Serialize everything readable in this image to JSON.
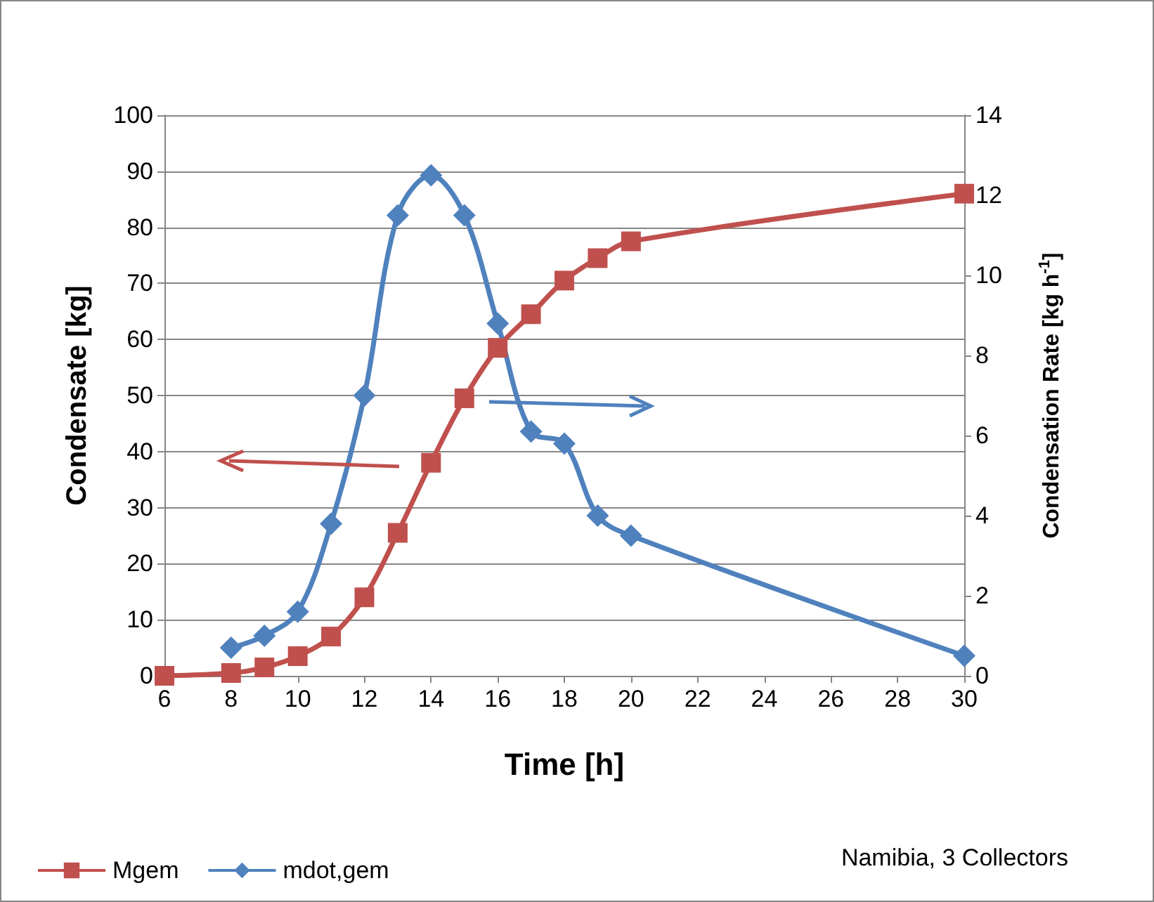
{
  "chart_data": {
    "type": "line",
    "xlabel": "Time [h]",
    "ylabel": "Condensate [kg]",
    "y2label": "Condensation Rate [kg h$^{-1}$]",
    "xlim": [
      6,
      30
    ],
    "xticks": [
      6,
      8,
      10,
      12,
      14,
      16,
      18,
      20,
      22,
      24,
      26,
      28,
      30
    ],
    "ylim": [
      0,
      100
    ],
    "yticks": [
      0,
      10,
      20,
      30,
      40,
      50,
      60,
      70,
      80,
      90,
      100
    ],
    "y2lim": [
      0,
      14
    ],
    "y2ticks": [
      0,
      2,
      4,
      6,
      8,
      10,
      12,
      14
    ],
    "grid": "y",
    "legend": "bottom left",
    "annotations": [
      "Namibia, 3 Collectors"
    ],
    "series": [
      {
        "name": "Mgem",
        "color": "#c0504d",
        "marker": "square",
        "x": [
          6,
          8,
          9,
          10,
          11,
          12,
          13,
          14,
          15,
          16,
          17,
          18,
          19,
          20,
          30
        ],
        "values": [
          0,
          0.5,
          1.5,
          3.5,
          7,
          14,
          25.5,
          38,
          49.5,
          58.5,
          64.5,
          70.5,
          74.5,
          77.5,
          86
        ]
      },
      {
        "name": "mdot,gem",
        "color": "#4f81bd",
        "marker": "diamond",
        "axis": "y2",
        "x": [
          8,
          9,
          10,
          11,
          12,
          13,
          14,
          15,
          16,
          17,
          18,
          19,
          20,
          30
        ],
        "values": [
          0.7,
          1.0,
          1.6,
          3.8,
          7.0,
          11.5,
          12.5,
          11.5,
          8.8,
          6.1,
          5.8,
          4.0,
          3.5,
          0.5
        ]
      }
    ]
  }
}
